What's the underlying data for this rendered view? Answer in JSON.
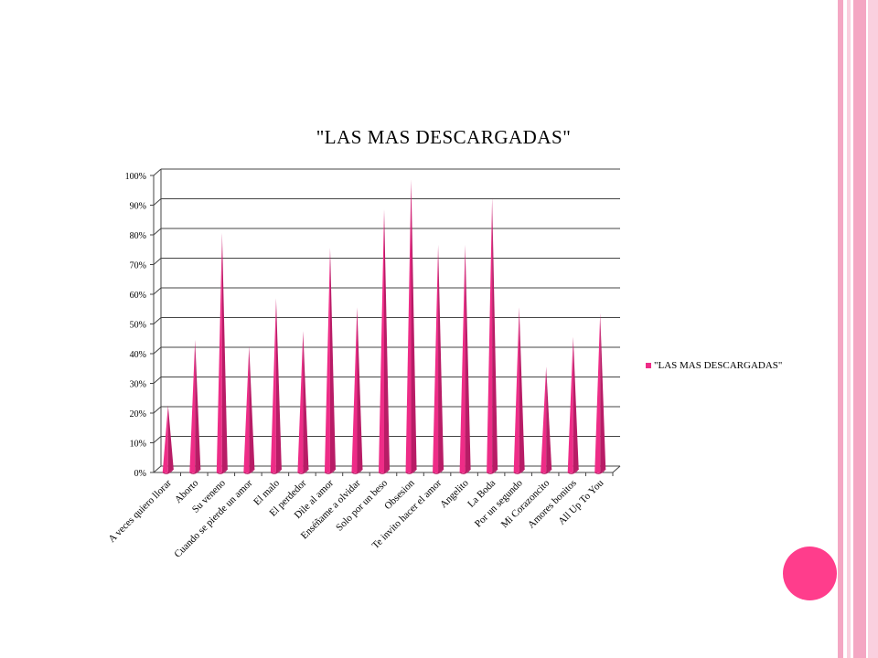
{
  "colors": {
    "accent": "#F4A7C3",
    "accent_light": "#FAD0DF",
    "cone": "#EE2C87",
    "cone_dark": "#B81C66",
    "dot": "#FF3D8C",
    "grid": "#444444"
  },
  "chart_data": {
    "type": "bar",
    "title": "\"LAS MAS DESCARGADAS\"",
    "series": [
      {
        "name": "\"LAS MAS DESCARGADAS\"",
        "values": [
          22,
          44,
          80,
          42,
          58,
          47,
          75,
          55,
          88,
          98,
          76,
          76,
          92,
          55,
          35,
          45,
          53
        ]
      }
    ],
    "categories": [
      "A veces quiero llorar",
      "Aborto",
      "Su veneno",
      "Cuando se pierde un amor",
      "El malo",
      "El perdedor",
      "Dile al amor",
      "Enséñame a olvidar",
      "Solo por un beso",
      "Obsesion",
      "Te invito hacer el amor",
      "Angelito",
      "La Boda",
      "Por un segundo",
      "Mi Corazoncito",
      "Amores bonitos",
      "All Up To You"
    ],
    "yticks": [
      "0%",
      "10%",
      "20%",
      "30%",
      "40%",
      "50%",
      "60%",
      "70%",
      "80%",
      "90%",
      "100%"
    ],
    "ylim": [
      0,
      100
    ],
    "legend_position": "right",
    "grid": true,
    "bar_shape": "cone"
  }
}
